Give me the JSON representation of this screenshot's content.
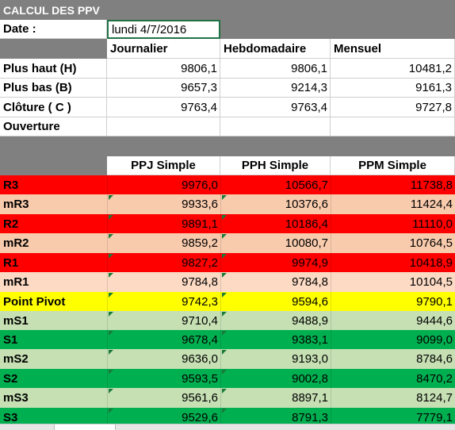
{
  "sheet_title": "CALCUL DES PPV",
  "date": {
    "label": "Date :",
    "value": "lundi 4/7/2016"
  },
  "period_headers": [
    "Journalier",
    "Hebdomadaire",
    "Mensuel"
  ],
  "inputs": [
    {
      "label": "Plus haut (H)",
      "values": [
        "9806,1",
        "9806,1",
        "10481,2"
      ]
    },
    {
      "label": "Plus bas (B)",
      "values": [
        "9657,3",
        "9214,3",
        "9161,3"
      ]
    },
    {
      "label": "Clôture ( C )",
      "values": [
        "9763,4",
        "9763,4",
        "9727,8"
      ]
    },
    {
      "label": "Ouverture",
      "values": [
        "",
        "",
        ""
      ]
    }
  ],
  "pivot_headers": [
    "PPJ Simple",
    "PPH Simple",
    "PPM Simple"
  ],
  "pivot_rows": [
    {
      "label": "R3",
      "values": [
        "9976,0",
        "10566,7",
        "11738,8"
      ],
      "color": "#ff0000"
    },
    {
      "label": "mR3",
      "values": [
        "9933,6",
        "10376,6",
        "11424,4"
      ],
      "color": "#f8cbad"
    },
    {
      "label": "R2",
      "values": [
        "9891,1",
        "10186,4",
        "11110,0"
      ],
      "color": "#ff0000"
    },
    {
      "label": "mR2",
      "values": [
        "9859,2",
        "10080,7",
        "10764,5"
      ],
      "color": "#f8cbad"
    },
    {
      "label": "R1",
      "values": [
        "9827,2",
        "9974,9",
        "10418,9"
      ],
      "color": "#ff0000"
    },
    {
      "label": "mR1",
      "values": [
        "9784,8",
        "9784,8",
        "10104,5"
      ],
      "color": "#fcdac4"
    },
    {
      "label": "Point Pivot",
      "values": [
        "9742,3",
        "9594,6",
        "9790,1"
      ],
      "color": "#ffff00"
    },
    {
      "label": "mS1",
      "values": [
        "9710,4",
        "9488,9",
        "9444,6"
      ],
      "color": "#c6e0b4"
    },
    {
      "label": "S1",
      "values": [
        "9678,4",
        "9383,1",
        "9099,0"
      ],
      "color": "#00b050"
    },
    {
      "label": "mS2",
      "values": [
        "9636,0",
        "9193,0",
        "8784,6"
      ],
      "color": "#c6e0b4"
    },
    {
      "label": "S2",
      "values": [
        "9593,5",
        "9002,8",
        "8470,2"
      ],
      "color": "#00b050"
    },
    {
      "label": "mS3",
      "values": [
        "9561,6",
        "8897,1",
        "8124,7"
      ],
      "color": "#c6e0b4"
    },
    {
      "label": "S3",
      "values": [
        "9529,6",
        "8791,3",
        "7779,1"
      ],
      "color": "#00b050"
    }
  ]
}
